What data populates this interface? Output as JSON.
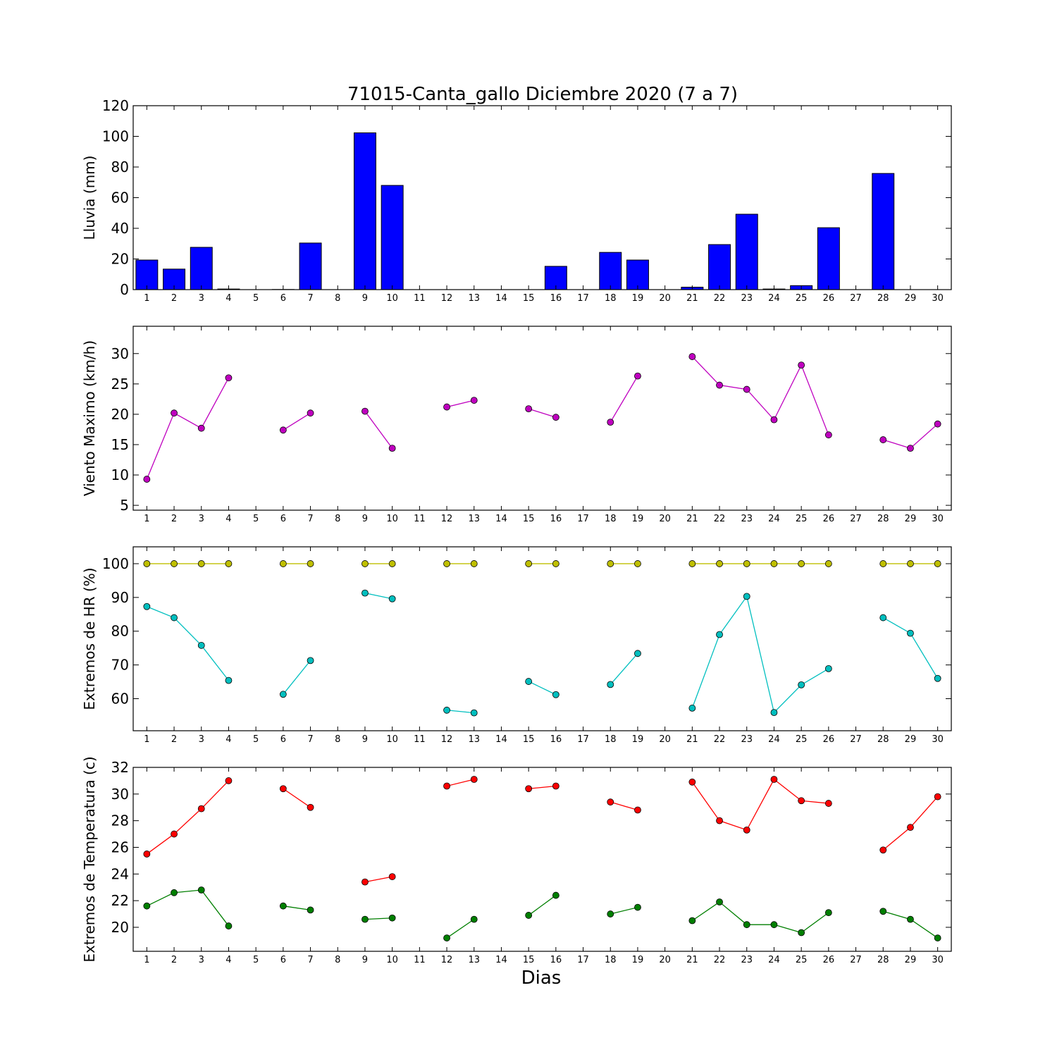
{
  "figure": {
    "title": "71015-Canta_gallo Diciembre 2020  (7 a 7)",
    "xlabel": "Dias"
  },
  "chart_data": [
    {
      "type": "bar",
      "ylabel": "Lluvia (mm)",
      "ylim": [
        0,
        120
      ],
      "yticks": [
        0,
        20,
        40,
        60,
        80,
        100,
        120
      ],
      "xlim": [
        0.5,
        30.5
      ],
      "xticks": [
        1,
        2,
        3,
        4,
        5,
        6,
        7,
        8,
        9,
        10,
        11,
        12,
        13,
        14,
        15,
        16,
        17,
        18,
        19,
        20,
        21,
        22,
        23,
        24,
        25,
        26,
        27,
        28,
        29,
        30
      ],
      "color": "#0000ff",
      "series": [
        {
          "x": [
            1,
            2,
            3,
            4,
            5,
            6,
            7,
            8,
            9,
            10,
            11,
            12,
            13,
            14,
            15,
            16,
            17,
            18,
            19,
            20,
            21,
            22,
            23,
            24,
            25,
            26,
            27,
            28,
            29,
            30
          ],
          "values": [
            19.3,
            13.4,
            27.6,
            0.4,
            0,
            0.1,
            30.4,
            0,
            102.3,
            68,
            0,
            0,
            0,
            0,
            0,
            15.2,
            0,
            24.3,
            19.3,
            0,
            1.6,
            29.4,
            49.2,
            0.4,
            2.6,
            40.4,
            0,
            75.8,
            0,
            0
          ]
        }
      ]
    },
    {
      "type": "line",
      "ylabel": "Viento Maximo (km/h)",
      "ylim": [
        4.2,
        34.5
      ],
      "yticks": [
        5,
        10,
        15,
        20,
        25,
        30
      ],
      "xlim": [
        0.5,
        30.5
      ],
      "xticks": [
        1,
        2,
        3,
        4,
        5,
        6,
        7,
        8,
        9,
        10,
        11,
        12,
        13,
        14,
        15,
        16,
        17,
        18,
        19,
        20,
        21,
        22,
        23,
        24,
        25,
        26,
        27,
        28,
        29,
        30
      ],
      "series": [
        {
          "color": "#bf00bf",
          "x": [
            1,
            2,
            3,
            4,
            5,
            6,
            7,
            8,
            9,
            10,
            11,
            12,
            13,
            14,
            15,
            16,
            17,
            18,
            19,
            20,
            21,
            22,
            23,
            24,
            25,
            26,
            27,
            28,
            29,
            30
          ],
          "values": [
            9.3,
            20.2,
            17.7,
            26,
            null,
            17.4,
            20.2,
            null,
            20.5,
            14.4,
            null,
            21.2,
            22.3,
            null,
            20.9,
            19.5,
            null,
            18.7,
            26.3,
            null,
            29.5,
            24.8,
            24.1,
            19.1,
            28.1,
            16.6,
            null,
            15.8,
            14.4,
            18.4
          ]
        }
      ]
    },
    {
      "type": "line",
      "ylabel": "Extremos de HR (%)",
      "ylim": [
        50.5,
        105
      ],
      "yticks": [
        60,
        70,
        80,
        90,
        100
      ],
      "xlim": [
        0.5,
        30.5
      ],
      "xticks": [
        1,
        2,
        3,
        4,
        5,
        6,
        7,
        8,
        9,
        10,
        11,
        12,
        13,
        14,
        15,
        16,
        17,
        18,
        19,
        20,
        21,
        22,
        23,
        24,
        25,
        26,
        27,
        28,
        29,
        30
      ],
      "series": [
        {
          "color": "#bfbf00",
          "x": [
            1,
            2,
            3,
            4,
            5,
            6,
            7,
            8,
            9,
            10,
            11,
            12,
            13,
            14,
            15,
            16,
            17,
            18,
            19,
            20,
            21,
            22,
            23,
            24,
            25,
            26,
            27,
            28,
            29,
            30
          ],
          "values": [
            100,
            100,
            100,
            100,
            null,
            100,
            100,
            null,
            100,
            100,
            null,
            100,
            100,
            null,
            100,
            100,
            null,
            100,
            100,
            null,
            100,
            100,
            100,
            100,
            100,
            100,
            null,
            100,
            100,
            100
          ]
        },
        {
          "color": "#00bfbf",
          "x": [
            1,
            2,
            3,
            4,
            5,
            6,
            7,
            8,
            9,
            10,
            11,
            12,
            13,
            14,
            15,
            16,
            17,
            18,
            19,
            20,
            21,
            22,
            23,
            24,
            25,
            26,
            27,
            28,
            29,
            30
          ],
          "values": [
            87.3,
            84,
            75.8,
            65.4,
            null,
            61.3,
            71.3,
            null,
            91.3,
            89.6,
            null,
            56.6,
            55.8,
            null,
            65.1,
            61.2,
            null,
            64.2,
            73.4,
            null,
            57.2,
            79,
            90.3,
            55.9,
            64.1,
            68.9,
            null,
            84,
            79.4,
            66
          ]
        }
      ]
    },
    {
      "type": "line",
      "ylabel": "Extremos de Temperatura (c)",
      "ylim": [
        18.2,
        32
      ],
      "yticks": [
        20,
        22,
        24,
        26,
        28,
        30,
        32
      ],
      "xlim": [
        0.5,
        30.5
      ],
      "xticks": [
        1,
        2,
        3,
        4,
        5,
        6,
        7,
        8,
        9,
        10,
        11,
        12,
        13,
        14,
        15,
        16,
        17,
        18,
        19,
        20,
        21,
        22,
        23,
        24,
        25,
        26,
        27,
        28,
        29,
        30
      ],
      "series": [
        {
          "color": "#ff0000",
          "x": [
            1,
            2,
            3,
            4,
            5,
            6,
            7,
            8,
            9,
            10,
            11,
            12,
            13,
            14,
            15,
            16,
            17,
            18,
            19,
            20,
            21,
            22,
            23,
            24,
            25,
            26,
            27,
            28,
            29,
            30
          ],
          "values": [
            25.5,
            27,
            28.9,
            31,
            null,
            30.4,
            29,
            null,
            23.4,
            23.8,
            null,
            30.6,
            31.1,
            null,
            30.4,
            30.6,
            null,
            29.4,
            28.8,
            null,
            30.9,
            28,
            27.3,
            31.1,
            29.5,
            29.3,
            null,
            25.8,
            27.5,
            29.8
          ]
        },
        {
          "color": "#007f00",
          "x": [
            1,
            2,
            3,
            4,
            5,
            6,
            7,
            8,
            9,
            10,
            11,
            12,
            13,
            14,
            15,
            16,
            17,
            18,
            19,
            20,
            21,
            22,
            23,
            24,
            25,
            26,
            27,
            28,
            29,
            30
          ],
          "values": [
            21.6,
            22.6,
            22.8,
            20.1,
            null,
            21.6,
            21.3,
            null,
            20.6,
            20.7,
            null,
            19.2,
            20.6,
            null,
            20.9,
            22.4,
            null,
            21,
            21.5,
            null,
            20.5,
            21.9,
            20.2,
            20.2,
            19.6,
            21.1,
            null,
            21.2,
            20.6,
            19.2
          ]
        }
      ]
    }
  ]
}
